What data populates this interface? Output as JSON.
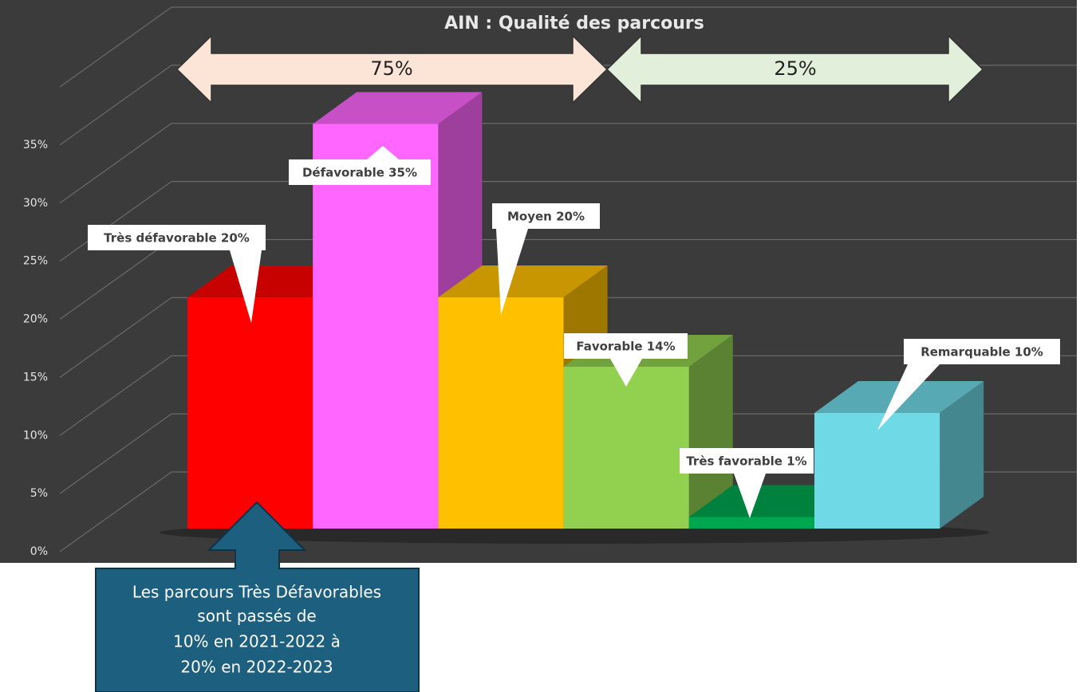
{
  "chart_data": {
    "type": "bar3d",
    "title": "AIN : Qualité des parcours",
    "values": [
      20,
      35,
      20,
      14,
      1,
      10
    ],
    "value_labels": [
      "Très défavorable 20%",
      "Défavorable 35%",
      "Moyen 20%",
      "Favorable 14%",
      "Très favorable 1%",
      "Remarquable 10%"
    ],
    "colors": [
      "#ff0000",
      "#ff66ff",
      "#ffc000",
      "#92d050",
      "#00a550",
      "#70d9e6"
    ],
    "ylim": [
      0,
      40
    ],
    "yticks": [
      {
        "value": 0,
        "label": "0%"
      },
      {
        "value": 5,
        "label": "5%"
      },
      {
        "value": 10,
        "label": "10%"
      },
      {
        "value": 15,
        "label": "15%"
      },
      {
        "value": 20,
        "label": "20%"
      },
      {
        "value": 25,
        "label": "25%"
      },
      {
        "value": 30,
        "label": "30%"
      },
      {
        "value": 35,
        "label": "35%"
      }
    ],
    "grid": true,
    "annotations": {
      "left_arrow": "75%",
      "right_arrow": "25%",
      "callout": [
        "Les parcours Très Défavorables",
        "sont passés de",
        "10% en 2021-2022 à",
        "20% en 2022-2023"
      ]
    }
  }
}
